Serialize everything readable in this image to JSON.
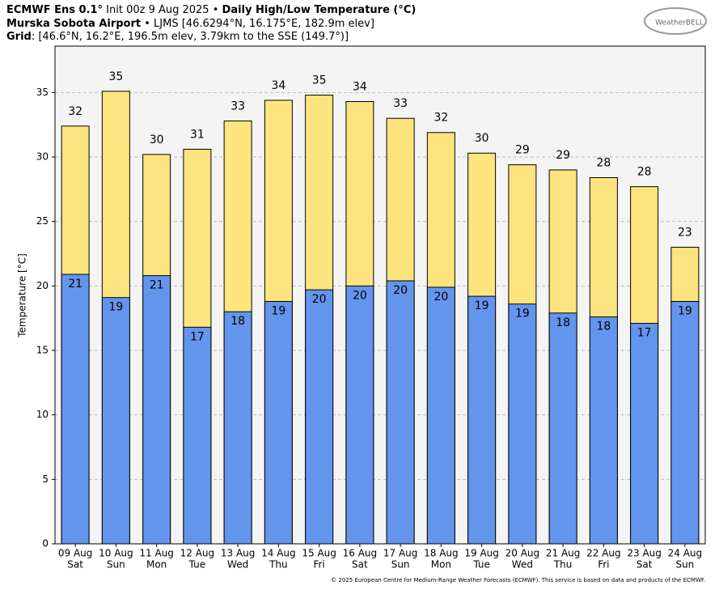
{
  "chart_data": {
    "type": "bar",
    "header": {
      "model": "ECMWF Ens 0.1°",
      "init": " Init 00z 9 Aug 2025 • ",
      "title": "Daily High/Low Temperature (°C)",
      "station": "Murska Sobota Airport",
      "station_info": " • LJMS [46.6294°N, 16.175°E, 182.9m elev]",
      "grid_label": "Grid",
      "grid_info": ": [46.6°N, 16.2°E, 196.5m elev, 3.79km to the SSE (149.7°)]"
    },
    "logo": "WeatherBELL",
    "footer": "© 2025 European Centre for Medium-Range Weather Forecasts (ECMWF). This service is based on data and products of the ECMWF.",
    "ylabel": "Temperature [°C]",
    "categories": [
      [
        "09 Aug",
        "Sat"
      ],
      [
        "10 Aug",
        "Sun"
      ],
      [
        "11 Aug",
        "Mon"
      ],
      [
        "12 Aug",
        "Tue"
      ],
      [
        "13 Aug",
        "Wed"
      ],
      [
        "14 Aug",
        "Thu"
      ],
      [
        "15 Aug",
        "Fri"
      ],
      [
        "16 Aug",
        "Sat"
      ],
      [
        "17 Aug",
        "Sun"
      ],
      [
        "18 Aug",
        "Mon"
      ],
      [
        "19 Aug",
        "Tue"
      ],
      [
        "20 Aug",
        "Wed"
      ],
      [
        "21 Aug",
        "Thu"
      ],
      [
        "22 Aug",
        "Fri"
      ],
      [
        "23 Aug",
        "Sat"
      ],
      [
        "24 Aug",
        "Sun"
      ]
    ],
    "series": [
      {
        "color": "#fde47f",
        "values": [
          32.4,
          35.1,
          30.2,
          30.6,
          32.8,
          34.4,
          34.8,
          34.3,
          33.0,
          31.9,
          30.3,
          29.4,
          29.0,
          28.4,
          27.7,
          23.0
        ],
        "value_labels": [
          "32",
          "35",
          "30",
          "31",
          "33",
          "34",
          "35",
          "34",
          "33",
          "32",
          "30",
          "29",
          "29",
          "28",
          "28",
          "23"
        ]
      },
      {
        "color": "#6495ed",
        "values": [
          20.9,
          19.1,
          20.8,
          16.8,
          18.0,
          18.8,
          19.7,
          20.0,
          20.4,
          19.9,
          19.2,
          18.6,
          17.9,
          17.6,
          17.1,
          18.8
        ],
        "value_labels": [
          "21",
          "19",
          "21",
          "17",
          "18",
          "19",
          "20",
          "20",
          "20",
          "20",
          "19",
          "19",
          "18",
          "18",
          "17",
          "19"
        ]
      }
    ],
    "ylim": [
      0,
      38.6
    ],
    "yticks": [
      0,
      5,
      10,
      15,
      20,
      25,
      30,
      35
    ],
    "grid": true
  }
}
